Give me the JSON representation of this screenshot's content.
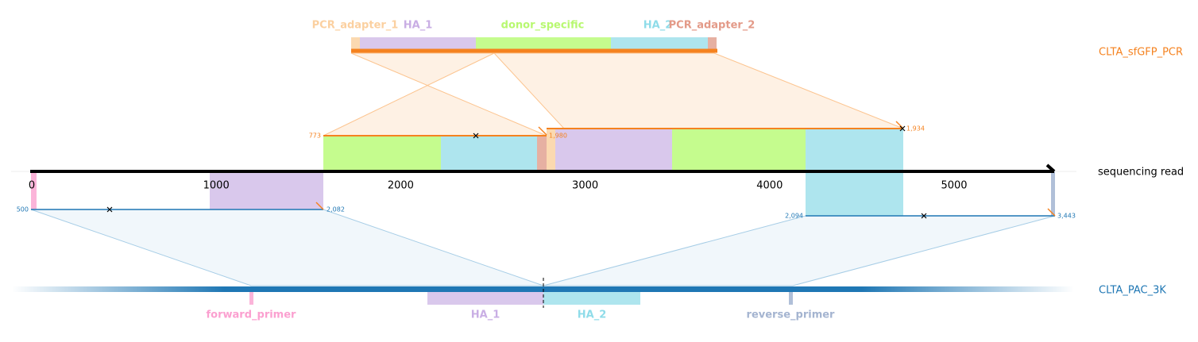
{
  "donor": {
    "label": "CLTA_sfGFP_PCR",
    "features": [
      "PCR_adapter_1",
      "HA_1",
      "donor_specific",
      "HA_2",
      "PCR_adapter_2"
    ]
  },
  "read": {
    "label": "sequencing read",
    "ticks": [
      0,
      1000,
      2000,
      3000,
      4000,
      5000
    ]
  },
  "target": {
    "label": "CLTA_PAC_3K",
    "features": [
      "forward_primer",
      "HA_1",
      "HA_2",
      "reverse_primer"
    ]
  },
  "alignments": [
    {
      "start": "773",
      "end": "1,980"
    },
    {
      "end": "1,934"
    },
    {
      "start": "500",
      "end": "2,082"
    },
    {
      "start": "2,094",
      "end": "3,443"
    }
  ]
}
